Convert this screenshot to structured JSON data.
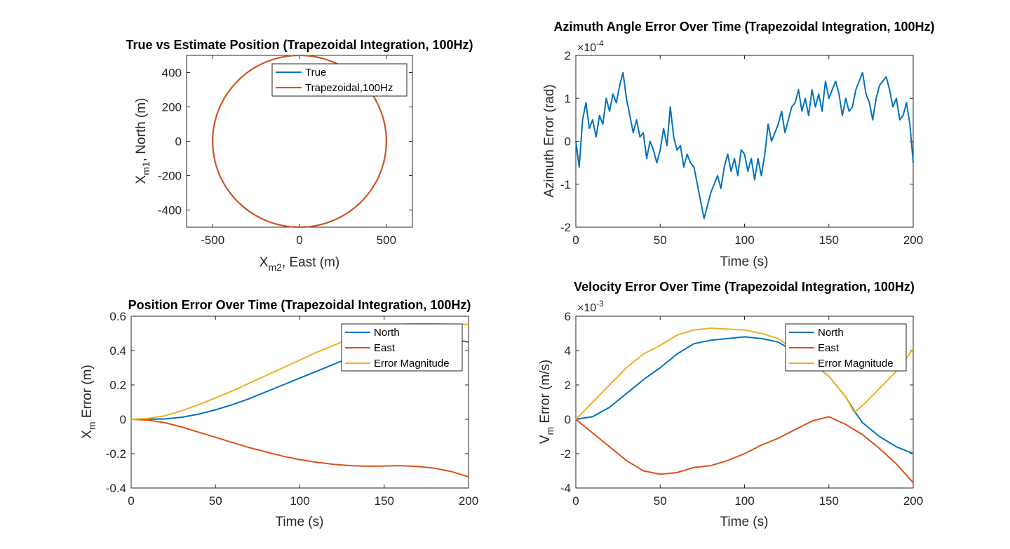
{
  "colors": {
    "blue": "#0072BD",
    "orange": "#D95319",
    "yellow": "#EDB120"
  },
  "chart_data": [
    {
      "type": "line",
      "title": "True vs Estimate Position (Trapezoidal Integration, 100Hz)",
      "xlabel_main": "X",
      "xlabel_sub": "m2",
      "xlabel_rest": ", East (m)",
      "ylabel_main": "X",
      "ylabel_sub": "m1",
      "ylabel_rest": ", North (m)",
      "xlim": [
        -650,
        650
      ],
      "ylim": [
        -500,
        500
      ],
      "xticks": [
        -500,
        0,
        500
      ],
      "yticks": [
        -400,
        -200,
        0,
        200,
        400
      ],
      "legend_placement": "top-right",
      "series": [
        {
          "name": "True",
          "color": "#0072BD",
          "shape": "circle",
          "center": [
            0,
            0
          ],
          "radius": 500
        },
        {
          "name": "Trapezoidal,100Hz",
          "color": "#D95319",
          "shape": "circle",
          "center": [
            0,
            0
          ],
          "radius": 500
        }
      ]
    },
    {
      "type": "line",
      "title": "Azimuth Angle Error Over Time (Trapezoidal Integration, 100Hz)",
      "xlabel": "Time (s)",
      "ylabel": "Azimuth Error (rad)",
      "exponent_base": "×10",
      "exponent": "-4",
      "xlim": [
        0,
        200
      ],
      "ylim": [
        -2,
        2
      ],
      "xticks": [
        0,
        50,
        100,
        150,
        200
      ],
      "yticks": [
        -2,
        -1,
        0,
        1,
        2
      ],
      "series": [
        {
          "name": "",
          "color": "#0072BD",
          "x": [
            0,
            2,
            4,
            6,
            8,
            10,
            12,
            14,
            16,
            18,
            20,
            22,
            24,
            26,
            28,
            30,
            32,
            34,
            36,
            38,
            40,
            42,
            44,
            46,
            48,
            50,
            52,
            54,
            56,
            58,
            60,
            62,
            64,
            66,
            68,
            70,
            72,
            74,
            76,
            78,
            80,
            82,
            84,
            86,
            88,
            90,
            92,
            94,
            96,
            98,
            100,
            102,
            104,
            106,
            108,
            110,
            112,
            114,
            116,
            118,
            120,
            122,
            124,
            126,
            128,
            130,
            132,
            134,
            136,
            138,
            140,
            142,
            144,
            146,
            148,
            150,
            152,
            154,
            156,
            158,
            160,
            162,
            164,
            166,
            168,
            170,
            172,
            174,
            176,
            178,
            180,
            182,
            184,
            186,
            188,
            190,
            192,
            194,
            196,
            198,
            200
          ],
          "y": [
            0,
            -0.6,
            0.5,
            0.9,
            0.3,
            0.5,
            0.1,
            0.6,
            0.4,
            1.0,
            0.7,
            1.1,
            0.9,
            1.3,
            1.6,
            1.0,
            0.6,
            0.2,
            0.5,
            0.1,
            0.2,
            -0.4,
            0.0,
            -0.2,
            -0.5,
            -0.2,
            0.3,
            -0.1,
            0.8,
            0.1,
            -0.2,
            -0.1,
            -0.6,
            -0.3,
            -0.5,
            -0.6,
            -1.0,
            -1.4,
            -1.8,
            -1.5,
            -1.2,
            -1.0,
            -0.8,
            -1.1,
            -0.6,
            -0.3,
            -0.7,
            -0.4,
            -0.8,
            -0.2,
            -0.3,
            -0.7,
            -0.4,
            -0.9,
            -0.4,
            -0.8,
            -0.3,
            0.4,
            0.0,
            0.2,
            0.4,
            0.7,
            0.2,
            0.5,
            0.8,
            0.9,
            1.2,
            0.7,
            1.0,
            0.6,
            1.2,
            0.8,
            1.1,
            0.7,
            1.4,
            1.0,
            1.2,
            1.4,
            1.1,
            0.6,
            1.0,
            0.7,
            0.8,
            1.2,
            1.4,
            1.6,
            1.1,
            0.9,
            0.5,
            1.0,
            1.3,
            1.4,
            1.5,
            1.2,
            0.8,
            1.0,
            0.5,
            0.6,
            0.9,
            0.4,
            -0.5
          ]
        }
      ]
    },
    {
      "type": "line",
      "title": "Position Error Over Time (Trapezoidal Integration, 100Hz)",
      "xlabel": "Time (s)",
      "ylabel_main": "X",
      "ylabel_sub": "m",
      "ylabel_rest": " Error (m)",
      "xlim": [
        0,
        200
      ],
      "ylim": [
        -0.4,
        0.6
      ],
      "xticks": [
        0,
        50,
        100,
        150,
        200
      ],
      "yticks": [
        -0.4,
        -0.2,
        0,
        0.2,
        0.4,
        0.6
      ],
      "legend_placement": "top-right",
      "series": [
        {
          "name": "North",
          "color": "#0072BD",
          "x": [
            0,
            10,
            20,
            30,
            40,
            50,
            60,
            70,
            80,
            90,
            100,
            110,
            120,
            130,
            140,
            150,
            160,
            170,
            180,
            190,
            200
          ],
          "y": [
            0,
            0,
            0.002,
            0.012,
            0.03,
            0.055,
            0.085,
            0.12,
            0.16,
            0.2,
            0.24,
            0.28,
            0.32,
            0.36,
            0.395,
            0.425,
            0.45,
            0.465,
            0.47,
            0.465,
            0.45
          ]
        },
        {
          "name": "East",
          "color": "#D95319",
          "x": [
            0,
            10,
            20,
            30,
            40,
            50,
            60,
            70,
            80,
            90,
            100,
            110,
            120,
            130,
            140,
            150,
            160,
            170,
            180,
            190,
            200
          ],
          "y": [
            0,
            -0.005,
            -0.02,
            -0.045,
            -0.075,
            -0.105,
            -0.135,
            -0.165,
            -0.19,
            -0.215,
            -0.235,
            -0.25,
            -0.262,
            -0.27,
            -0.273,
            -0.272,
            -0.27,
            -0.275,
            -0.285,
            -0.305,
            -0.335
          ]
        },
        {
          "name": "Error Magnitude",
          "color": "#EDB120",
          "x": [
            0,
            10,
            20,
            30,
            40,
            50,
            60,
            70,
            80,
            90,
            100,
            110,
            120,
            130,
            140,
            150,
            160,
            170,
            180,
            190,
            200
          ],
          "y": [
            0,
            0.005,
            0.02,
            0.05,
            0.085,
            0.125,
            0.165,
            0.21,
            0.255,
            0.3,
            0.345,
            0.39,
            0.43,
            0.47,
            0.51,
            0.54,
            0.553,
            0.556,
            0.555,
            0.553,
            0.553
          ]
        }
      ]
    },
    {
      "type": "line",
      "title": "Velocity Error Over Time (Trapezoidal Integration, 100Hz)",
      "xlabel": "Time (s)",
      "ylabel_main": "V",
      "ylabel_sub": "m",
      "ylabel_rest": " Error (m/s)",
      "exponent_base": "×10",
      "exponent": "-3",
      "xlim": [
        0,
        200
      ],
      "ylim": [
        -4,
        6
      ],
      "xticks": [
        0,
        50,
        100,
        150,
        200
      ],
      "yticks": [
        -4,
        -2,
        0,
        2,
        4,
        6
      ],
      "legend_placement": "top-right",
      "series": [
        {
          "name": "North",
          "color": "#0072BD",
          "x": [
            0,
            10,
            20,
            30,
            40,
            50,
            60,
            70,
            80,
            90,
            100,
            110,
            120,
            130,
            140,
            150,
            160,
            165,
            170,
            180,
            190,
            200
          ],
          "y": [
            0,
            0.15,
            0.7,
            1.5,
            2.3,
            3.0,
            3.8,
            4.4,
            4.6,
            4.7,
            4.8,
            4.7,
            4.5,
            3.9,
            3.3,
            2.5,
            1.3,
            0.5,
            -0.2,
            -1.0,
            -1.6,
            -2.0
          ]
        },
        {
          "name": "East",
          "color": "#D95319",
          "x": [
            0,
            10,
            20,
            30,
            40,
            50,
            60,
            70,
            80,
            90,
            100,
            110,
            120,
            130,
            140,
            150,
            160,
            170,
            180,
            190,
            200
          ],
          "y": [
            0,
            -0.8,
            -1.6,
            -2.4,
            -3.0,
            -3.2,
            -3.1,
            -2.8,
            -2.7,
            -2.4,
            -2.0,
            -1.5,
            -1.1,
            -0.6,
            -0.1,
            0.15,
            -0.3,
            -0.9,
            -1.7,
            -2.6,
            -3.7
          ]
        },
        {
          "name": "Error Magnitude",
          "color": "#EDB120",
          "x": [
            0,
            10,
            20,
            30,
            40,
            50,
            60,
            70,
            80,
            90,
            100,
            110,
            120,
            130,
            140,
            150,
            160,
            165,
            170,
            180,
            190,
            200
          ],
          "y": [
            0,
            1.0,
            2.0,
            3.0,
            3.8,
            4.3,
            4.9,
            5.2,
            5.3,
            5.25,
            5.2,
            5.0,
            4.7,
            4.0,
            3.3,
            2.5,
            1.3,
            0.4,
            0.8,
            1.8,
            2.8,
            4.1
          ]
        }
      ]
    }
  ]
}
